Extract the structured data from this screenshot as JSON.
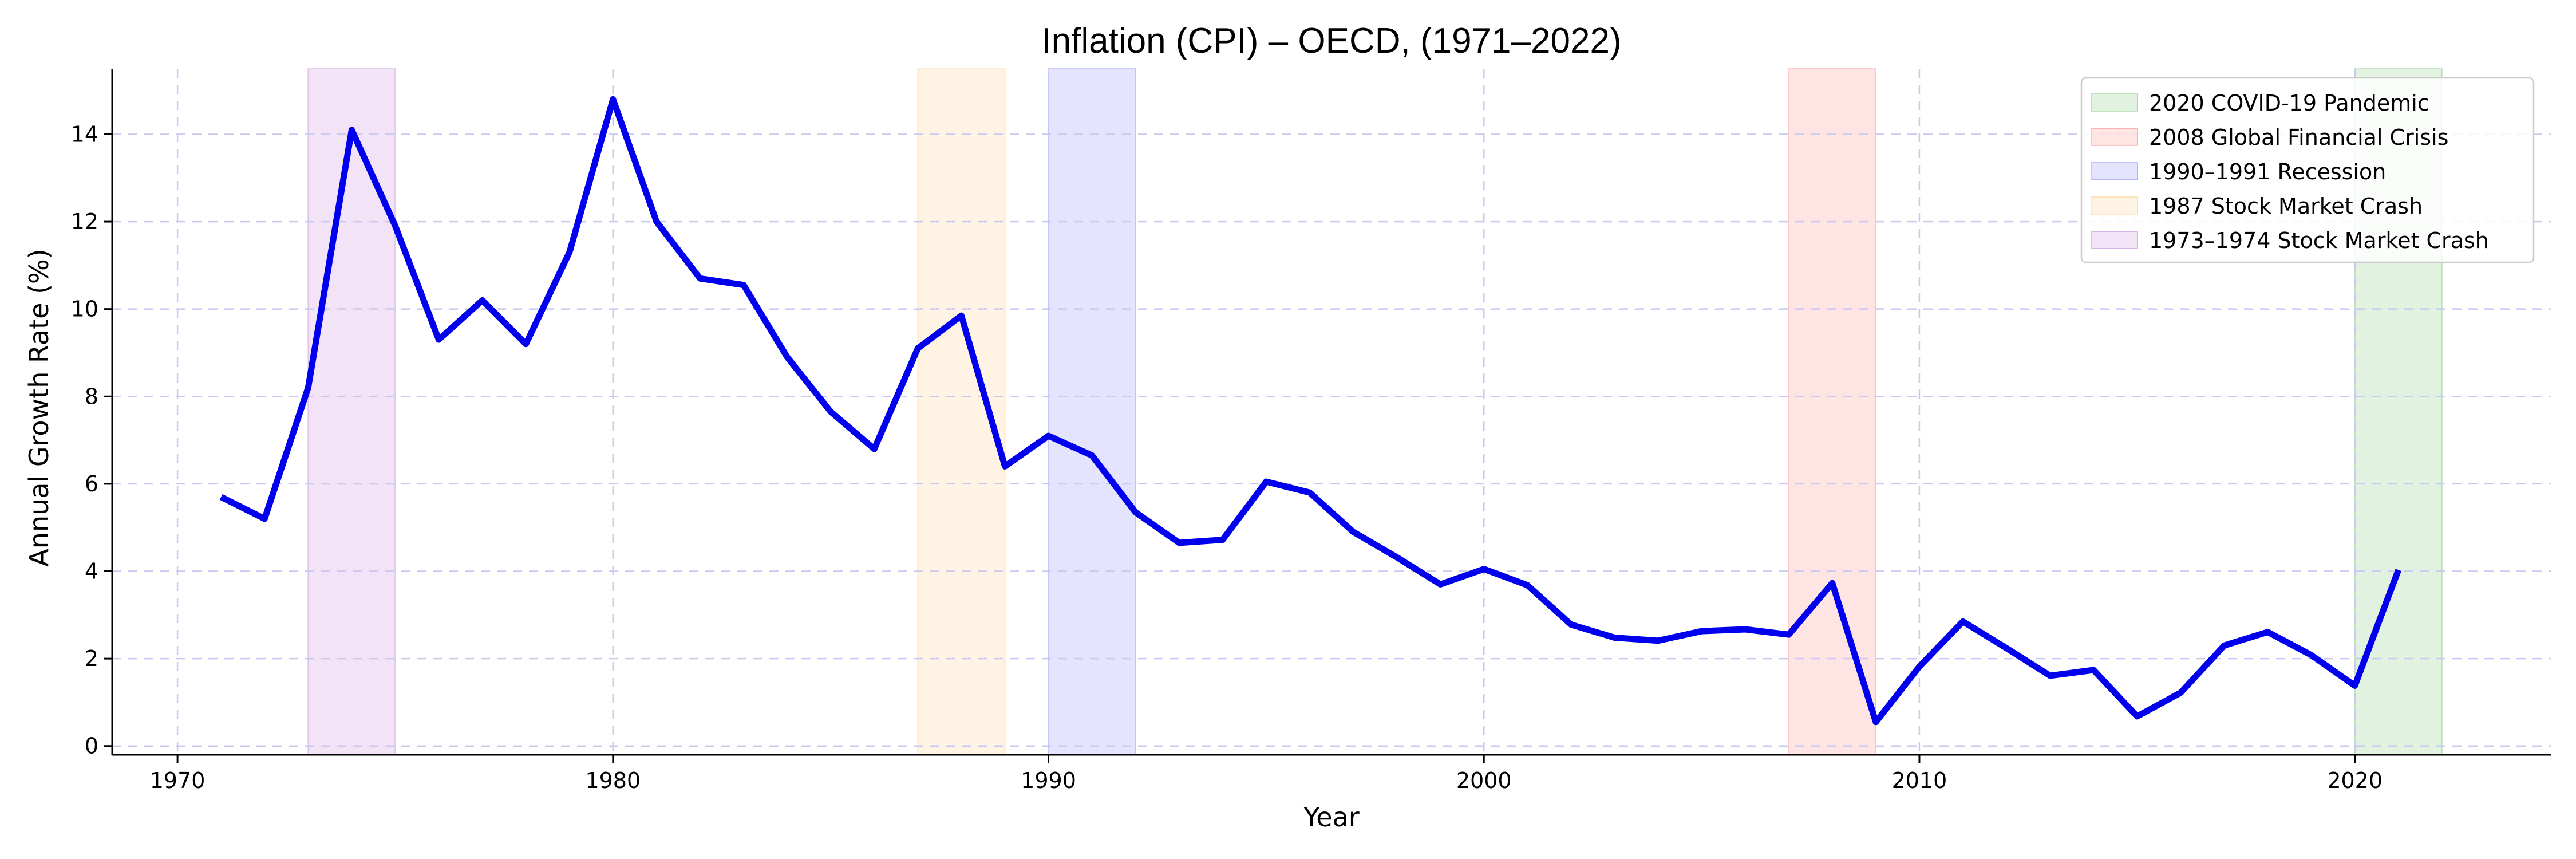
{
  "chart_data": {
    "type": "line",
    "title": "Inflation (CPI) – OECD, (1971–2022)",
    "xlabel": "Year",
    "ylabel": "Annual Growth Rate (%)",
    "xlim": [
      1968.5,
      2024.5
    ],
    "ylim": [
      -0.2,
      15.5
    ],
    "x_ticks": [
      1970,
      1980,
      1990,
      2000,
      2010,
      2020
    ],
    "y_ticks": [
      0,
      2,
      4,
      6,
      8,
      10,
      12,
      14
    ],
    "grid": true,
    "legend_position": "top-right",
    "series": [
      {
        "color": "#0000ee",
        "x": [
          1971,
          1972,
          1973,
          1974,
          1975,
          1976,
          1977,
          1978,
          1979,
          1980,
          1981,
          1982,
          1983,
          1984,
          1985,
          1986,
          1987,
          1988,
          1989,
          1990,
          1991,
          1992,
          1993,
          1994,
          1995,
          1996,
          1997,
          1998,
          1999,
          2000,
          2001,
          2002,
          2003,
          2004,
          2005,
          2006,
          2007,
          2008,
          2009,
          2010,
          2011,
          2012,
          2013,
          2014,
          2015,
          2016,
          2017,
          2018,
          2019,
          2020,
          2021
        ],
        "y": [
          5.7,
          5.2,
          8.2,
          14.1,
          11.9,
          9.3,
          10.2,
          9.2,
          11.3,
          14.8,
          12.0,
          10.7,
          10.55,
          8.9,
          7.65,
          6.8,
          9.1,
          9.85,
          6.4,
          7.1,
          6.65,
          5.35,
          4.65,
          4.72,
          6.05,
          5.8,
          4.9,
          4.32,
          3.7,
          4.05,
          3.68,
          2.78,
          2.48,
          2.41,
          2.63,
          2.67,
          2.55,
          3.73,
          0.55,
          1.82,
          2.85,
          2.24,
          1.61,
          1.74,
          0.68,
          1.22,
          2.3,
          2.61,
          2.08,
          1.38,
          4.03
        ]
      }
    ],
    "shaded_periods": [
      {
        "label": "2020 COVID-19 Pandemic",
        "start": 2020,
        "end": 2022,
        "color": "#2ca02c"
      },
      {
        "label": "2008 Global Financial Crisis",
        "start": 2007,
        "end": 2009,
        "color": "#ff4040"
      },
      {
        "label": "1990–1991 Recession",
        "start": 1990,
        "end": 1992,
        "color": "#4040ff"
      },
      {
        "label": "1987 Stock Market Crash",
        "start": 1987,
        "end": 1989,
        "color": "#ffb040"
      },
      {
        "label": "1973–1974 Stock Market Crash",
        "start": 1973,
        "end": 1975,
        "color": "#a040c0"
      }
    ]
  }
}
